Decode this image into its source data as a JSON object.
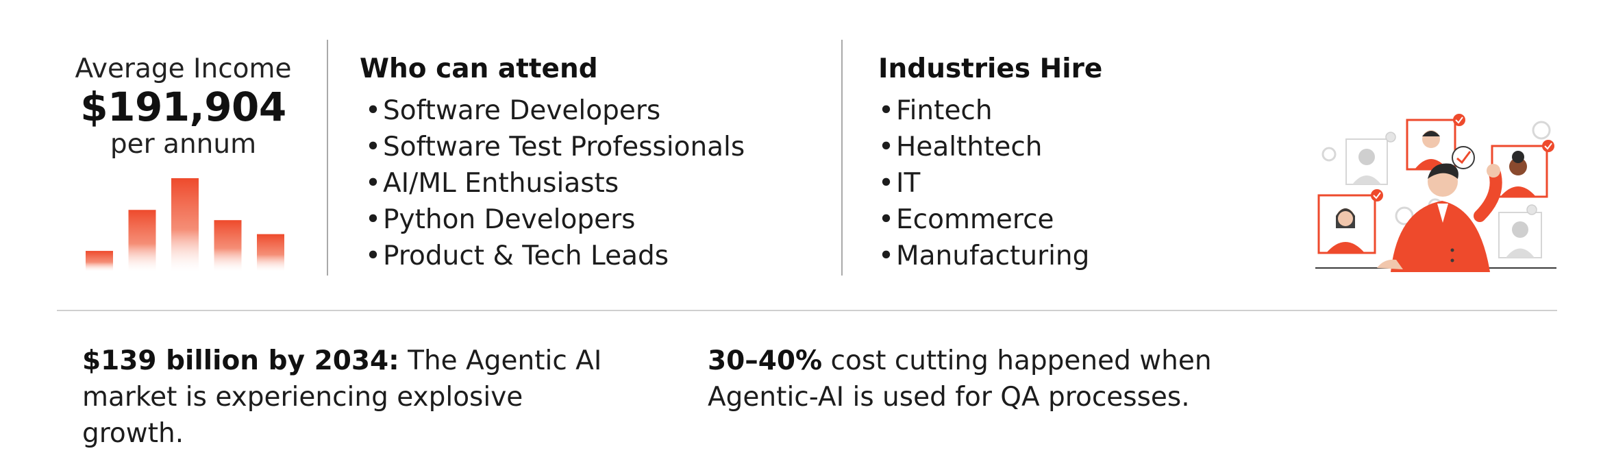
{
  "income": {
    "label": "Average Income",
    "value": "$191,904",
    "period": "per annum",
    "bars": [
      0.22,
      0.66,
      1.0,
      0.55,
      0.4
    ]
  },
  "attend": {
    "title": "Who can attend",
    "items": [
      "Software Developers",
      "Software Test Professionals",
      "AI/ML Enthusiasts",
      "Python Developers",
      "Product & Tech Leads"
    ]
  },
  "industries": {
    "title": "Industries Hire",
    "items": [
      "Fintech",
      "Healthtech",
      "IT",
      "Ecommerce",
      "Manufacturing"
    ]
  },
  "stats": [
    {
      "bold": "$139 billion by 2034:",
      "line1_rest": " The Agentic AI",
      "line2": "market is experiencing explosive growth."
    },
    {
      "bold": "30–40%",
      "line1_rest": " cost cutting happened when",
      "line2": "Agentic-AI is used for QA processes."
    }
  ],
  "bullet_char": "•",
  "colors": {
    "accent": "#ee4a2c",
    "divider": "#a9a9a9",
    "text": "#1c1c1c"
  },
  "icons": {
    "illustration": "team-video-call-illustration",
    "chart": "bar-chart-icon"
  }
}
